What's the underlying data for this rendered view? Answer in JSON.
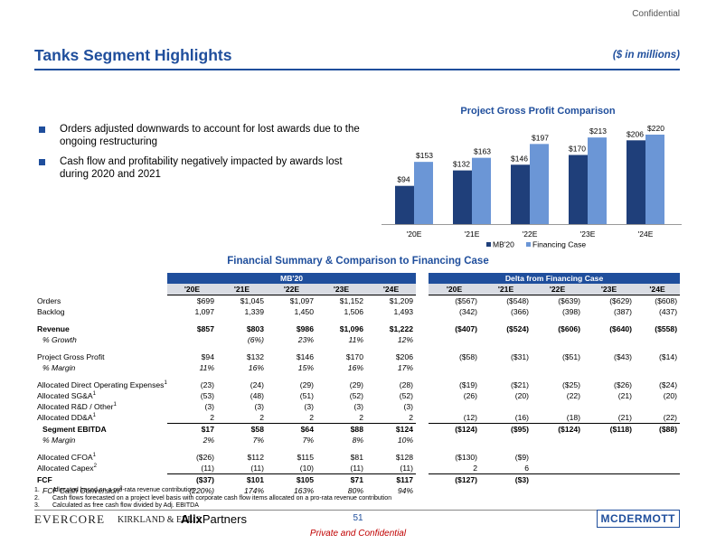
{
  "header": {
    "confidential": "Confidential",
    "title": "Tanks Segment Highlights",
    "units": "($ in millions)"
  },
  "bullets": [
    "Orders adjusted downwards to account for lost awards due to the ongoing restructuring",
    "Cash flow and profitability negatively impacted by awards lost during 2020 and 2021"
  ],
  "chart_data": {
    "type": "bar",
    "title": "Project Gross Profit Comparison",
    "categories": [
      "'20E",
      "'21E",
      "'22E",
      "'23E",
      "'24E"
    ],
    "series": [
      {
        "name": "MB'20",
        "values": [
          94,
          132,
          146,
          170,
          206
        ],
        "labels": [
          "$94",
          "$132",
          "$146",
          "$170",
          "$206"
        ],
        "color": "#1f3f7a"
      },
      {
        "name": "Financing Case",
        "values": [
          153,
          163,
          197,
          213,
          220
        ],
        "labels": [
          "$153",
          "$163",
          "$197",
          "$213",
          "$220"
        ],
        "color": "#6b96d6"
      }
    ],
    "ylim": [
      0,
      240
    ],
    "xlabel": "",
    "ylabel": ""
  },
  "financial": {
    "title": "Financial Summary & Comparison to Financing Case",
    "mb_header": "MB'20",
    "delta_header": "Delta from Financing Case",
    "years": [
      "'20E",
      "'21E",
      "'22E",
      "'23E",
      "'24E"
    ],
    "rows": [
      {
        "label": "Orders",
        "sup": "",
        "mb": [
          "$699",
          "$1,045",
          "$1,097",
          "$1,152",
          "$1,209"
        ],
        "delta": [
          "($567)",
          "($548)",
          "($639)",
          "($629)",
          "($608)"
        ]
      },
      {
        "label": "Backlog",
        "sup": "",
        "mb": [
          "1,097",
          "1,339",
          "1,450",
          "1,506",
          "1,493"
        ],
        "delta": [
          "(342)",
          "(366)",
          "(398)",
          "(387)",
          "(437)"
        ]
      },
      {
        "label": "Revenue",
        "sup": "",
        "mb": [
          "$857",
          "$803",
          "$986",
          "$1,096",
          "$1,222"
        ],
        "delta": [
          "($407)",
          "($524)",
          "($606)",
          "($640)",
          "($558)"
        ]
      },
      {
        "label": "% Growth",
        "sup": "",
        "mb": [
          "",
          "(6%)",
          "23%",
          "11%",
          "12%"
        ],
        "delta": [
          "",
          "",
          "",
          "",
          ""
        ]
      },
      {
        "label": "Project Gross Profit",
        "sup": "",
        "mb": [
          "$94",
          "$132",
          "$146",
          "$170",
          "$206"
        ],
        "delta": [
          "($58)",
          "($31)",
          "($51)",
          "($43)",
          "($14)"
        ]
      },
      {
        "label": "% Margin",
        "sup": "",
        "mb": [
          "11%",
          "16%",
          "15%",
          "16%",
          "17%"
        ],
        "delta": [
          "",
          "",
          "",
          "",
          ""
        ]
      },
      {
        "label": "Allocated Direct Operating Expenses",
        "sup": "1",
        "mb": [
          "(23)",
          "(24)",
          "(29)",
          "(29)",
          "(28)"
        ],
        "delta": [
          "($19)",
          "($21)",
          "($25)",
          "($26)",
          "($24)"
        ]
      },
      {
        "label": "Allocated SG&A",
        "sup": "1",
        "mb": [
          "(53)",
          "(48)",
          "(51)",
          "(52)",
          "(52)"
        ],
        "delta": [
          "(26)",
          "(20)",
          "(22)",
          "(21)",
          "(20)"
        ]
      },
      {
        "label": "Allocated R&D / Other",
        "sup": "1",
        "mb": [
          "(3)",
          "(3)",
          "(3)",
          "(3)",
          "(3)"
        ],
        "delta": [
          "",
          "",
          "",
          "",
          ""
        ]
      },
      {
        "label": "Allocated DD&A",
        "sup": "1",
        "mb": [
          "2",
          "2",
          "2",
          "2",
          "2"
        ],
        "delta": [
          "(12)",
          "(16)",
          "(18)",
          "(21)",
          "(22)"
        ]
      },
      {
        "label": "Segment EBITDA",
        "sup": "",
        "mb": [
          "$17",
          "$58",
          "$64",
          "$88",
          "$124"
        ],
        "delta": [
          "($124)",
          "($95)",
          "($124)",
          "($118)",
          "($88)"
        ]
      },
      {
        "label": "% Margin",
        "sup": "",
        "mb": [
          "2%",
          "7%",
          "7%",
          "8%",
          "10%"
        ],
        "delta": [
          "",
          "",
          "",
          "",
          ""
        ]
      },
      {
        "label": "Allocated CFOA",
        "sup": "1",
        "mb": [
          "($26)",
          "$112",
          "$115",
          "$81",
          "$128"
        ],
        "delta": [
          "($130)",
          "($9)",
          "",
          "",
          ""
        ]
      },
      {
        "label": "Allocated Capex",
        "sup": "2",
        "mb": [
          "(11)",
          "(11)",
          "(10)",
          "(11)",
          "(11)"
        ],
        "delta": [
          "2",
          "6",
          "",
          "",
          ""
        ]
      },
      {
        "label": "FCF",
        "sup": "",
        "mb": [
          "($37)",
          "$101",
          "$105",
          "$71",
          "$117"
        ],
        "delta": [
          "($127)",
          "($3)",
          "",
          "",
          ""
        ]
      },
      {
        "label": "FCF Cash Conversion",
        "sup": "3",
        "mb": [
          "(220%)",
          "174%",
          "163%",
          "80%",
          "94%"
        ],
        "delta": [
          "",
          "",
          "",
          "",
          ""
        ]
      }
    ]
  },
  "notes": [
    {
      "num": "1.",
      "text": "Allocated based on a pro-rata revenue contribution"
    },
    {
      "num": "2.",
      "text": "Cash flows forecasted on a project level basis with corporate cash flow items allocated on a pro-rata revenue contribution"
    },
    {
      "num": "3.",
      "text": "Calculated as free cash flow divided by Adj. EBITDA"
    }
  ],
  "footer": {
    "evercore": "EVERCORE",
    "kirkland": "KIRKLAND & ELLIS",
    "alix_a": "Alix",
    "alix_b": "Partners",
    "page": "51",
    "mcdermott": "MCDERMOTT",
    "confidential": "Private and Confidential"
  }
}
